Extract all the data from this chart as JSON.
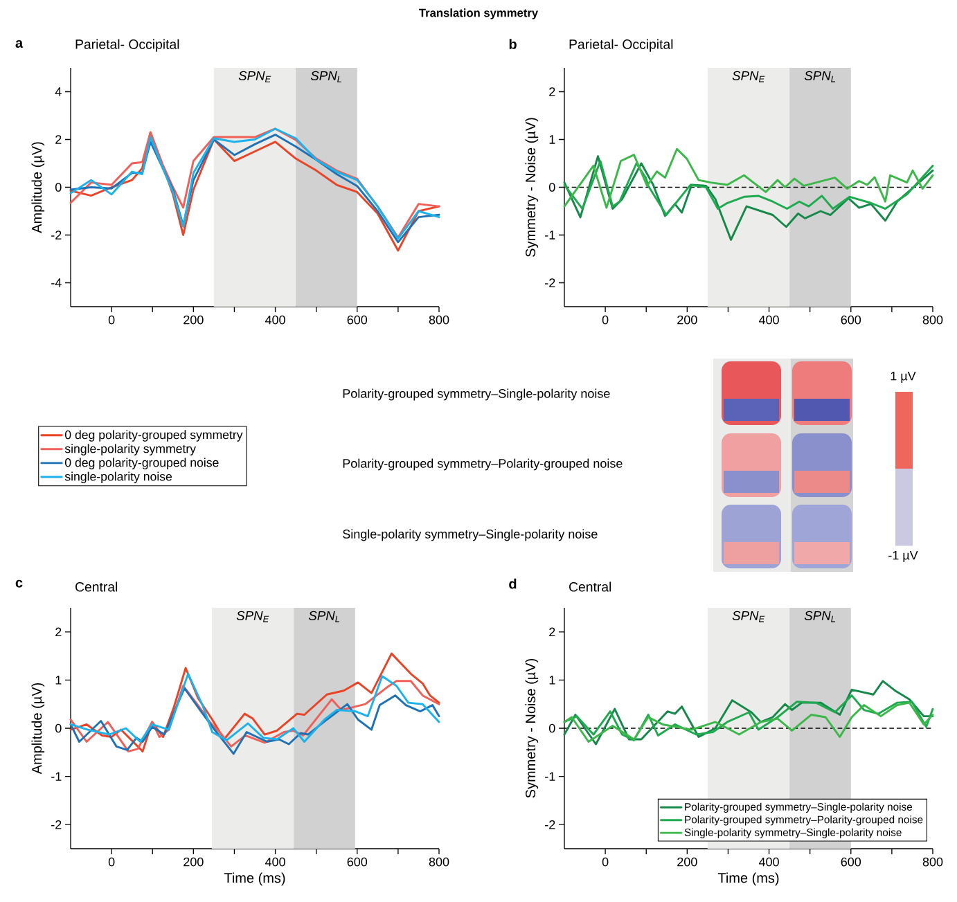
{
  "chart_data": [
    {
      "type": "other",
      "title": "Translation symmetry"
    },
    {
      "type": "line",
      "title": "Parietal- Occipital",
      "ylabel": "Amplitude (µV)",
      "annotations": [
        "a"
      ],
      "xlim": [
        -100,
        800
      ],
      "ylim": [
        -5,
        5
      ],
      "xticks": [
        0,
        {
          "value": 100,
          "label": null
        },
        200,
        {
          "value": 300,
          "label": null
        },
        400,
        {
          "value": 500,
          "label": null
        },
        600,
        {
          "value": 700,
          "label": null
        },
        800
      ],
      "yticks": [
        -4,
        -2,
        0,
        2,
        4
      ],
      "bands": [
        {
          "axis": "x",
          "from": 250,
          "to": 450,
          "label": "SPN$_{E}$",
          "color": "#ececea"
        },
        {
          "axis": "x",
          "from": 450,
          "to": 600,
          "label": "SPN$_{L}$",
          "color": "#d0d1d0"
        }
      ],
      "legend": "bottom",
      "x": [
        -100,
        -50,
        0,
        50,
        75,
        95,
        125,
        150,
        175,
        200,
        250,
        300,
        350,
        400,
        450,
        500,
        550,
        600,
        650,
        700,
        750,
        800
      ],
      "series": [
        {
          "name": "0 deg polarity-grouped symmetry",
          "color": "#ea4326",
          "values": [
            -0.15,
            -0.35,
            0,
            0.3,
            0.8,
            2.3,
            0.9,
            -0.3,
            -2.0,
            -0.1,
            2.0,
            1.1,
            1.5,
            1.9,
            1.2,
            0.7,
            0.1,
            -0.2,
            -1.1,
            -2.65,
            -1.0,
            -0.8
          ]
        },
        {
          "name": "single-polarity symmetry",
          "color": "#f05f58",
          "values": [
            -0.65,
            0.2,
            0.1,
            1.0,
            1.05,
            2.3,
            0.95,
            0,
            -0.85,
            1.1,
            2.1,
            2.1,
            2.1,
            2.45,
            1.98,
            1.2,
            0.7,
            0.35,
            -0.8,
            -2.1,
            -0.7,
            -0.8
          ]
        },
        {
          "name": "0 deg polarity-grouped noise",
          "color": "#1f72b5",
          "values": [
            -0.1,
            0,
            -0.05,
            0.6,
            0.6,
            1.9,
            0.8,
            -0.1,
            -1.6,
            0.3,
            2.0,
            1.35,
            1.8,
            2.2,
            1.7,
            1.15,
            0.55,
            0.05,
            -1.0,
            -2.3,
            -1.25,
            -1.15
          ]
        },
        {
          "name": "single-polarity noise",
          "color": "#1cb2ea",
          "values": [
            -0.25,
            0.3,
            -0.3,
            0.65,
            0.55,
            2.1,
            0.8,
            -0.2,
            -1.65,
            0.6,
            2.05,
            1.9,
            2.0,
            2.45,
            2.05,
            1.15,
            0.65,
            0.3,
            -0.8,
            -2.15,
            -1.0,
            -1.25
          ]
        }
      ]
    },
    {
      "type": "line",
      "title": "Parietal- Occipital",
      "ylabel": "Symmetry - Noise (µV)",
      "annotations": [
        "b"
      ],
      "xlim": [
        -100,
        800
      ],
      "ylim": [
        -2.5,
        2.5
      ],
      "xticks": [
        0,
        {
          "value": 100,
          "label": null
        },
        200,
        {
          "value": 300,
          "label": null
        },
        400,
        {
          "value": 500,
          "label": null
        },
        600,
        {
          "value": 700,
          "label": null
        },
        800
      ],
      "yticks": [
        -2,
        -1,
        0,
        1,
        2
      ],
      "bands": [
        {
          "axis": "x",
          "from": 250,
          "to": 450,
          "label": "SPN$_{E}$",
          "color": "#ececea"
        },
        {
          "axis": "x",
          "from": 450,
          "to": 600,
          "label": "SPN$_{L}$",
          "color": "#d0d1d0"
        }
      ],
      "ref_lines": [
        {
          "axis": "y",
          "value": 0,
          "line_style": "dashed",
          "color": "#000000"
        }
      ],
      "series": [
        {
          "color": "#16894a",
          "x": [
            -100,
            -61,
            -18,
            18,
            41,
            88,
            117,
            146,
            170,
            187,
            211,
            246,
            269,
            307,
            345,
            409,
            442,
            471,
            488,
            526,
            550,
            594,
            620,
            649,
            684,
            713,
            800
          ],
          "values": [
            0.1,
            -0.63,
            0.65,
            -0.45,
            -0.25,
            0.5,
            0.05,
            -0.6,
            -0.35,
            -0.53,
            0.05,
            0.03,
            -0.25,
            -1.1,
            -0.4,
            -0.58,
            -0.83,
            -0.55,
            -0.65,
            -0.5,
            -0.58,
            -0.23,
            -0.43,
            -0.35,
            -0.7,
            -0.3,
            0.35
          ]
        },
        {
          "color": "#1eaa4f",
          "x": [
            -100,
            -56,
            -12,
            18,
            35,
            76,
            99,
            105,
            149,
            208,
            246,
            275,
            298,
            339,
            374,
            409,
            444,
            474,
            497,
            529,
            556,
            597,
            649,
            684,
            737,
            800
          ],
          "values": [
            0.05,
            -0.45,
            0.55,
            -0.4,
            -0.3,
            0.5,
            0.2,
            0.03,
            -0.58,
            0.05,
            0,
            -0.45,
            -0.33,
            -0.2,
            -0.18,
            -0.3,
            -0.45,
            -0.3,
            -0.4,
            -0.18,
            -0.45,
            -0.2,
            -0.33,
            -0.45,
            -0.15,
            0.45
          ]
        },
        {
          "color": "#3cb84b",
          "x": [
            -100,
            -29,
            3,
            38,
            70,
            102,
            126,
            146,
            175,
            199,
            228,
            257,
            298,
            339,
            392,
            421,
            439,
            462,
            485,
            561,
            591,
            620,
            640,
            658,
            684,
            696,
            737,
            751,
            775,
            800
          ],
          "values": [
            -0.4,
            0.45,
            -0.43,
            0.55,
            0.68,
            0.03,
            0.33,
            0.2,
            0.8,
            0.6,
            0.15,
            0.1,
            0.05,
            0.25,
            -0.1,
            0.15,
            0,
            0.18,
            0.03,
            0.2,
            -0.03,
            0.13,
            0.05,
            0.21,
            -0.3,
            0.25,
            0.1,
            0.35,
            -0.03,
            0.25
          ]
        }
      ]
    },
    {
      "type": "other",
      "annotations": [
        "Polarity-grouped symmetry–Single-polarity noise",
        "Polarity-grouped symmetry–Polarity-grouped noise",
        "Single-polarity symmetry–Single-polarity noise",
        "1 µV",
        "-1 µV"
      ]
    },
    {
      "type": "line",
      "title": "Central",
      "xlabel": "Time (ms)",
      "ylabel": "Amplitude (µV)",
      "annotations": [
        "c"
      ],
      "xlim": [
        -100,
        800
      ],
      "ylim": [
        -2.5,
        2.5
      ],
      "xticks": [
        0,
        {
          "value": 100,
          "label": null
        },
        200,
        {
          "value": 300,
          "label": null
        },
        400,
        {
          "value": 500,
          "label": null
        },
        600,
        {
          "value": 700,
          "label": null
        },
        800
      ],
      "yticks": [
        -2,
        -1,
        0,
        1,
        2
      ],
      "bands": [
        {
          "axis": "x",
          "from": 245,
          "to": 445,
          "label": "SPN$_{E}$",
          "color": "#ececea"
        },
        {
          "axis": "x",
          "from": 445,
          "to": 595,
          "label": "SPN$_{L}$",
          "color": "#d0d1d0"
        }
      ],
      "series": [
        {
          "color": "#ea4326",
          "x": [
            -100,
            -61,
            -23,
            0,
            23,
            76,
            99,
            126,
            152,
            181,
            211,
            246,
            275,
            325,
            345,
            374,
            404,
            453,
            471,
            526,
            567,
            602,
            635,
            684,
            731,
            760,
            778,
            800
          ],
          "values": [
            -0.03,
            0.08,
            -0.15,
            -0.18,
            -0.03,
            -0.48,
            0.13,
            -0.18,
            0.43,
            1.25,
            0.63,
            0.18,
            -0.23,
            0.3,
            0.2,
            -0.13,
            -0.05,
            0.3,
            0.28,
            0.7,
            0.78,
            0.95,
            0.73,
            1.55,
            1.13,
            0.93,
            0.68,
            0.53
          ]
        },
        {
          "color": "#f05f58",
          "x": [
            -100,
            -61,
            -9,
            41,
            64,
            99,
            117,
            140,
            175,
            211,
            240,
            269,
            292,
            327,
            374,
            421,
            444,
            468,
            538,
            561,
            620,
            673,
            696,
            731,
            760,
            800
          ],
          "values": [
            0.18,
            -0.28,
            0.13,
            -0.48,
            -0.43,
            0.13,
            -0.18,
            -0.03,
            0.88,
            0.48,
            0.13,
            -0.13,
            -0.38,
            -0.15,
            -0.3,
            -0.08,
            -0.05,
            -0.15,
            0.6,
            0.38,
            0.5,
            0.85,
            0.98,
            0.98,
            0.68,
            0.5
          ]
        },
        {
          "color": "#1f72b5",
          "x": [
            -100,
            -79,
            -26,
            12,
            38,
            61,
            76,
            99,
            129,
            178,
            216,
            246,
            298,
            330,
            380,
            409,
            433,
            462,
            480,
            526,
            576,
            602,
            635,
            655,
            693,
            719,
            754,
            784,
            800
          ],
          "values": [
            0.08,
            -0.28,
            0.15,
            -0.38,
            -0.45,
            -0.2,
            -0.28,
            0.03,
            -0.13,
            0.83,
            0.38,
            0.03,
            -0.53,
            -0.08,
            -0.28,
            -0.23,
            -0.33,
            -0.1,
            -0.13,
            0.18,
            0.5,
            0.18,
            -0.03,
            0.48,
            0.68,
            0.48,
            0.35,
            0.48,
            0.25
          ]
        },
        {
          "color": "#1cb2ea",
          "x": [
            -100,
            -58,
            -6,
            35,
            70,
            99,
            140,
            187,
            222,
            246,
            281,
            333,
            371,
            404,
            444,
            471,
            520,
            550,
            596,
            626,
            661,
            696,
            725,
            760,
            800
          ],
          "values": [
            0.08,
            -0.03,
            -0.13,
            0,
            -0.28,
            0.08,
            -0.03,
            1.13,
            0.48,
            -0.08,
            -0.25,
            0.1,
            -0.2,
            -0.23,
            0,
            -0.28,
            0.18,
            0.38,
            0.35,
            0.25,
            1.08,
            0.88,
            0.53,
            0.5,
            0.13
          ]
        }
      ]
    },
    {
      "type": "line",
      "title": "Central",
      "xlabel": "Time (ms)",
      "ylabel": "Symmetry - Noise (µV)",
      "annotations": [
        "d"
      ],
      "xlim": [
        -100,
        800
      ],
      "ylim": [
        -2.5,
        2.5
      ],
      "xticks": [
        0,
        {
          "value": 100,
          "label": null
        },
        200,
        {
          "value": 300,
          "label": null
        },
        400,
        {
          "value": 500,
          "label": null
        },
        600,
        {
          "value": 700,
          "label": null
        },
        800
      ],
      "yticks": [
        -2,
        -1,
        0,
        1,
        2
      ],
      "bands": [
        {
          "axis": "x",
          "from": 250,
          "to": 450,
          "label": "SPN$_{E}$",
          "color": "#ececea"
        },
        {
          "axis": "x",
          "from": 450,
          "to": 600,
          "label": "SPN$_{L}$",
          "color": "#d0d1d0"
        }
      ],
      "ref_lines": [
        {
          "axis": "y",
          "value": 0,
          "line_style": "dashed",
          "color": "#000000"
        }
      ],
      "legend": "bottom right",
      "series": [
        {
          "name": "Polarity-grouped symmetry–Single-polarity noise",
          "color": "#16894a",
          "x": [
            -100,
            -73,
            -23,
            23,
            58,
            88,
            152,
            170,
            187,
            228,
            269,
            310,
            357,
            380,
            409,
            439,
            456,
            480,
            526,
            573,
            602,
            655,
            678,
            708,
            743,
            778,
            800
          ],
          "values": [
            -0.13,
            0.28,
            -0.33,
            0.4,
            -0.23,
            -0.23,
            0.35,
            0.3,
            0.45,
            -0.18,
            0,
            0.58,
            0.33,
            0.13,
            0.23,
            0.5,
            0.38,
            0.53,
            0.53,
            0.28,
            0.8,
            0.7,
            0.98,
            0.78,
            0.6,
            0.25,
            0.25
          ]
        },
        {
          "name": "Polarity-grouped symmetry–Polarity-grouped noise",
          "color": "#1eaa4f",
          "x": [
            -100,
            -70,
            -29,
            12,
            41,
            70,
            105,
            129,
            170,
            222,
            263,
            298,
            351,
            374,
            421,
            468,
            515,
            561,
            602,
            632,
            667,
            713,
            749,
            784,
            800
          ],
          "values": [
            0.13,
            0.25,
            -0.13,
            0.35,
            -0.13,
            -0.25,
            0.28,
            -0.15,
            0.08,
            -0.13,
            -0.08,
            0.13,
            0.33,
            -0.03,
            0.23,
            0.55,
            0.53,
            0.33,
            0.68,
            0.38,
            0.3,
            0.53,
            0.55,
            0.03,
            0.4
          ]
        },
        {
          "name": "Single-polarity symmetry–Single-polarity noise",
          "color": "#3cb84b",
          "x": [
            -100,
            -82,
            -41,
            18,
            70,
            105,
            140,
            211,
            269,
            327,
            380,
            421,
            456,
            503,
            538,
            573,
            602,
            632,
            673,
            713,
            743,
            778,
            800
          ],
          "values": [
            0.13,
            0.23,
            -0.28,
            0.05,
            -0.23,
            0.23,
            0.08,
            -0.03,
            0.13,
            -0.13,
            0.13,
            0.2,
            -0.05,
            0.28,
            0.23,
            -0.18,
            0.23,
            0.48,
            0.25,
            0.48,
            0.53,
            0.08,
            0.28
          ]
        }
      ]
    }
  ]
}
